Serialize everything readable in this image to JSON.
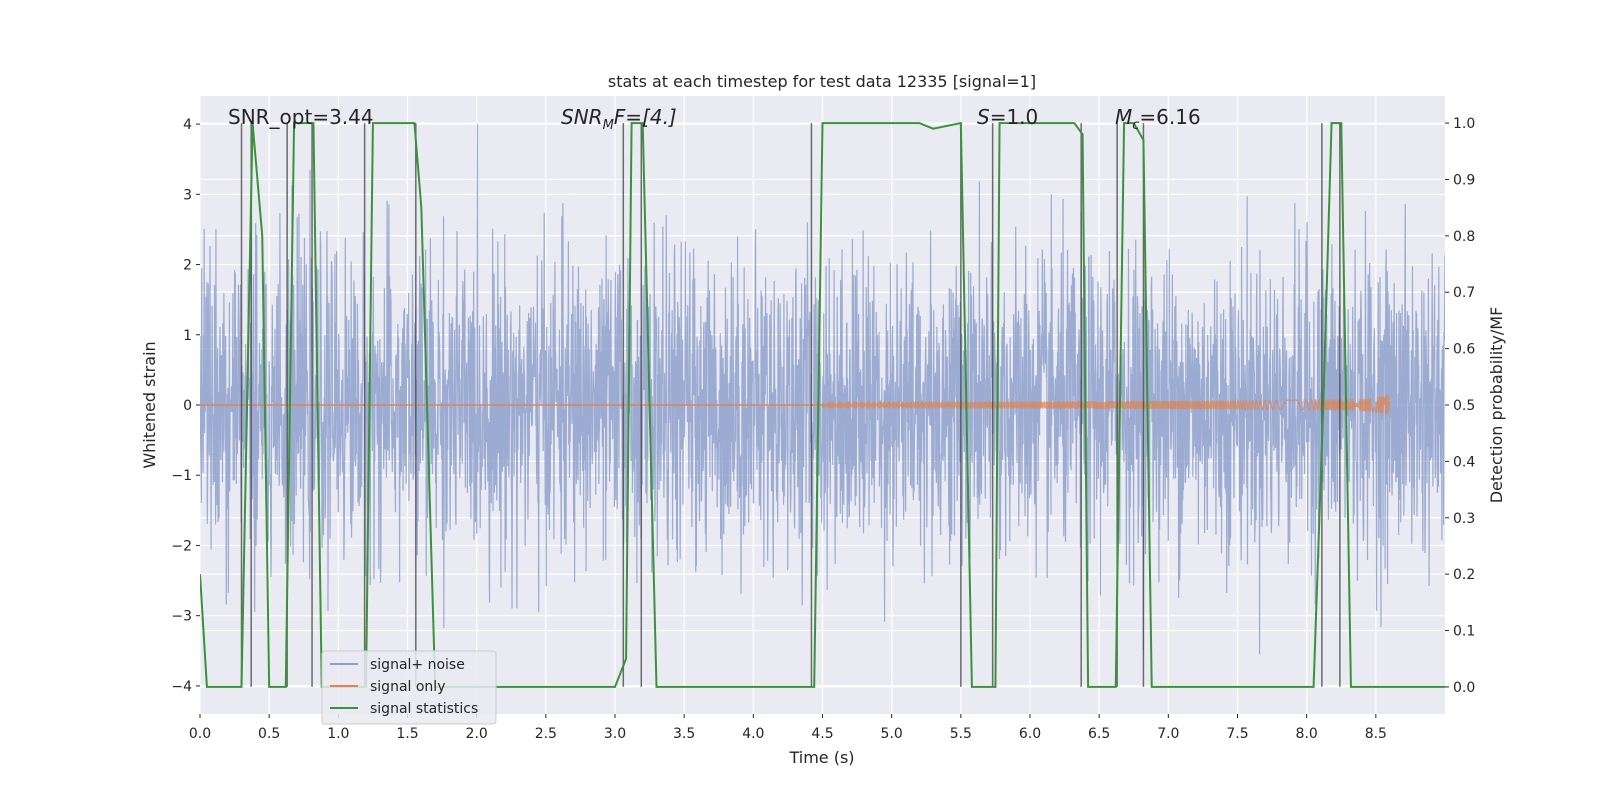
{
  "chart_data": {
    "type": "line",
    "title": "stats at each timestep for test data 12335 [signal=1]",
    "xlabel": "Time (s)",
    "ylabel": "Whitened strain",
    "y2label": "Detection probability/MF",
    "xlim": [
      0.0,
      9.0
    ],
    "ylim": [
      -4.4,
      4.4
    ],
    "y2lim": [
      -0.048,
      1.048
    ],
    "xticks": [
      "0.0",
      "0.5",
      "1.0",
      "1.5",
      "2.0",
      "2.5",
      "3.0",
      "3.5",
      "4.0",
      "4.5",
      "5.0",
      "5.5",
      "6.0",
      "6.5",
      "7.0",
      "7.5",
      "8.0",
      "8.5"
    ],
    "yticks": [
      "4",
      "3",
      "2",
      "1",
      "0",
      "−1",
      "−2",
      "−3",
      "−4"
    ],
    "y2ticks": [
      "1.0",
      "0.9",
      "0.8",
      "0.7",
      "0.6",
      "0.5",
      "0.4",
      "0.3",
      "0.2",
      "0.1",
      "0.0"
    ],
    "grid": true,
    "legend_position": "lower-left",
    "annotations": {
      "snr_opt": "SNR_opt=3.44",
      "snr_mf_main": "SNR",
      "snr_mf_sub": "M",
      "snr_mf_rest": "F=[4.]",
      "s_main": "S",
      "s_rest": "=1.0",
      "mc_main": "M",
      "mc_sub": "c",
      "mc_rest": "=6.16"
    },
    "series": [
      {
        "name": "signal+ noise",
        "color": "#8da0cb",
        "noise_std": 1.0,
        "noise_max": 4.0
      },
      {
        "name": "signal only",
        "color": "#dd8452",
        "chirp_start": 4.5,
        "chirp_peak_time": 8.6,
        "chirp_peak_amplitude": 0.4
      },
      {
        "name": "signal statistics",
        "color": "#3a923a",
        "x": [
          0.0,
          0.05,
          0.25,
          0.3,
          0.38,
          0.45,
          0.5,
          0.55,
          0.6,
          0.62,
          0.68,
          0.72,
          0.78,
          0.82,
          0.88,
          1.2,
          1.25,
          1.3,
          1.55,
          1.6,
          1.7,
          2.0,
          2.5,
          3.0,
          3.08,
          3.12,
          3.2,
          3.3,
          3.5,
          4.0,
          4.44,
          4.5,
          5.0,
          5.2,
          5.3,
          5.5,
          5.58,
          5.62,
          5.7,
          5.75,
          5.78,
          6.32,
          6.38,
          6.42,
          6.55,
          6.62,
          6.68,
          6.75,
          6.82,
          6.88,
          7.0,
          8.0,
          8.05,
          8.12,
          8.18,
          8.25,
          8.32,
          8.5,
          9.0
        ],
        "y": [
          0.2,
          0.0,
          0.0,
          0.0,
          1.0,
          0.8,
          0.0,
          0.0,
          0.0,
          0.0,
          1.0,
          1.0,
          1.0,
          1.0,
          0.0,
          0.0,
          1.0,
          1.0,
          1.0,
          0.85,
          0.0,
          0.0,
          0.0,
          0.0,
          0.05,
          1.0,
          1.0,
          0.0,
          0.0,
          0.0,
          0.0,
          1.0,
          1.0,
          1.0,
          0.99,
          1.0,
          0.0,
          0.0,
          0.0,
          0.0,
          1.0,
          1.0,
          0.98,
          0.0,
          0.0,
          0.0,
          1.0,
          1.0,
          0.97,
          0.0,
          0.0,
          0.0,
          0.0,
          0.5,
          1.0,
          1.0,
          0.0,
          0.0,
          0.0
        ]
      }
    ],
    "event_lines_x": [
      0.3,
      0.37,
      0.63,
      0.81,
      1.19,
      1.56,
      3.06,
      3.19,
      4.42,
      5.5,
      5.73,
      6.37,
      6.63,
      6.82,
      8.11,
      8.24
    ]
  }
}
